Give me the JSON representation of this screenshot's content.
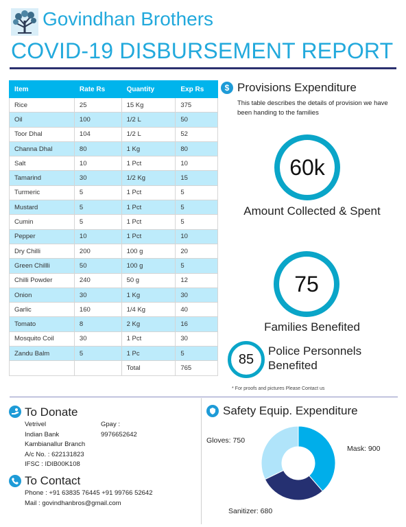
{
  "header": {
    "brand": "Govindhan Brothers",
    "report_title": "COVID-19 DISBURSEMENT REPORT"
  },
  "provisions_table": {
    "headers": [
      "Item",
      "Rate Rs",
      "Quantity",
      "Exp Rs"
    ],
    "rows": [
      [
        "Rice",
        "25",
        "15 Kg",
        "375"
      ],
      [
        "Oil",
        "100",
        "1/2 L",
        "50"
      ],
      [
        "Toor Dhal",
        "104",
        "1/2 L",
        "52"
      ],
      [
        "Channa Dhal",
        "80",
        "1 Kg",
        "80"
      ],
      [
        "Salt",
        "10",
        "1 Pct",
        "10"
      ],
      [
        "Tamarind",
        "30",
        "1/2 Kg",
        "15"
      ],
      [
        "Turmeric",
        "5",
        "1 Pct",
        "5"
      ],
      [
        "Mustard",
        "5",
        "1 Pct",
        "5"
      ],
      [
        "Cumin",
        "5",
        "1 Pct",
        "5"
      ],
      [
        "Pepper",
        "10",
        "1 Pct",
        "10"
      ],
      [
        "Dry Chilli",
        "200",
        "100 g",
        "20"
      ],
      [
        "Green Chillli",
        "50",
        "100 g",
        "5"
      ],
      [
        "Chilli Powder",
        "240",
        "50 g",
        "12"
      ],
      [
        "Onion",
        "30",
        "1 Kg",
        "30"
      ],
      [
        "Garlic",
        "160",
        "1/4 Kg",
        "40"
      ],
      [
        "Tomato",
        "8",
        "2 Kg",
        "16"
      ],
      [
        "Mosquito Coil",
        "30",
        "1 Pct",
        "30"
      ],
      [
        "Zandu Balm",
        "5",
        "1 Pc",
        "5"
      ],
      [
        "",
        "",
        "Total",
        "765"
      ]
    ]
  },
  "provisions": {
    "icon": "dollar-icon",
    "title": "Provisions Expenditure",
    "description": "This table describes the details of provision we have been handing to the families"
  },
  "stats": {
    "amount_value": "60k",
    "amount_label": "Amount Collected & Spent",
    "families_value": "75",
    "families_label": "Families Benefited",
    "police_value": "85",
    "police_label": "Police Personnels Benefited"
  },
  "footnote": "* For proofs and pictures Please Contact us",
  "donate": {
    "icon": "donate-hand-icon",
    "title": "To Donate",
    "name": "Vetrivel",
    "bank": "Indian Bank",
    "branch": "Kambianallur Branch",
    "account": "A/c No. : 622131823",
    "ifsc": "IFSC : IDIB00K108",
    "gpay_label": "Gpay :",
    "gpay_number": "9976652642"
  },
  "contact": {
    "icon": "phone-icon",
    "title": "To Contact",
    "phone": "Phone : +91 63835 76445 +91 99766 52642",
    "mail": "Mail : govindhanbros@gmail.com"
  },
  "safety": {
    "icon": "shield-icon",
    "title": "Safety Equip. Expenditure"
  },
  "chart_data": {
    "type": "pie",
    "donut": true,
    "title": "Safety Equip. Expenditure",
    "labels": [
      "Mask",
      "Sanitizer",
      "Gloves"
    ],
    "values": [
      900,
      680,
      750
    ],
    "display_labels": [
      "Mask: 900",
      "Sanitizer: 680",
      "Gloves: 750"
    ],
    "colors": [
      "#00aeea",
      "#253071",
      "#b0e4fa"
    ]
  }
}
